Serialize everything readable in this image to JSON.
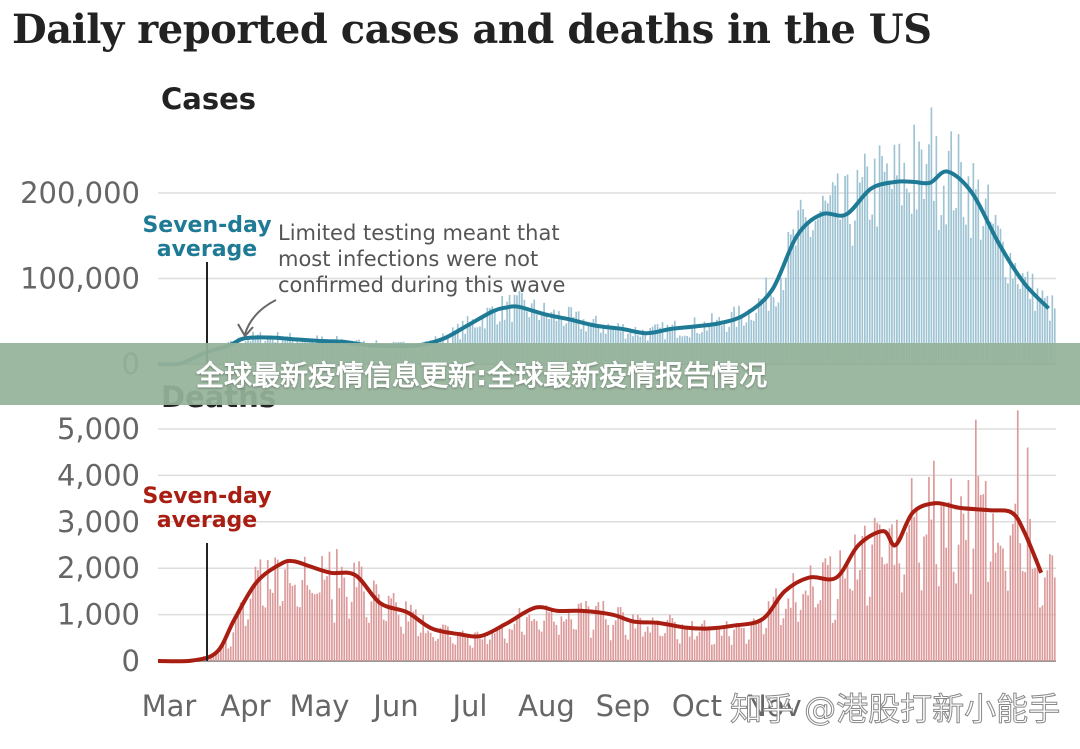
{
  "title": "Daily reported cases and deaths in the US",
  "banner": "全球最新疫情信息更新:全球最新疫情报告情况",
  "watermark": "知乎 @港股打新小能手",
  "colors": {
    "cases_line": "#1f7a96",
    "cases_bar": "#9ec3d3",
    "deaths_line": "#a81e12",
    "deaths_bar": "#dc9a9a",
    "banner": "#96b39a"
  },
  "chart_data": [
    {
      "type": "bar",
      "title": "Cases",
      "x_tick_labels": [
        "Mar",
        "Apr",
        "May",
        "Jun",
        "Jul",
        "Aug",
        "Sep",
        "Oct",
        "Nov"
      ],
      "y_tick_labels": [
        "200,000",
        "100,000",
        "0"
      ],
      "ylim": [
        0,
        200000
      ],
      "annotations": [
        {
          "label": "Seven-day average",
          "text": "Seven-day\naverage"
        },
        {
          "label": "note",
          "text": "Limited testing meant that\nmost infections were not\nconfirmed during this wave"
        }
      ],
      "series": [
        {
          "name": "Seven-day average",
          "kind": "line",
          "x": [
            "2020-03-01",
            "2020-03-10",
            "2020-03-20",
            "2020-03-30",
            "2020-04-05",
            "2020-04-15",
            "2020-04-25",
            "2020-05-05",
            "2020-05-15",
            "2020-05-25",
            "2020-06-05",
            "2020-06-15",
            "2020-06-25",
            "2020-07-05",
            "2020-07-15",
            "2020-07-20",
            "2020-07-25",
            "2020-08-05",
            "2020-08-15",
            "2020-08-25",
            "2020-09-05",
            "2020-09-15",
            "2020-09-25",
            "2020-10-05",
            "2020-10-15",
            "2020-10-25",
            "2020-11-05",
            "2020-11-15",
            "2020-11-25",
            "2020-12-05",
            "2020-12-15",
            "2020-12-25",
            "2021-01-01",
            "2021-01-08",
            "2021-01-15",
            "2021-01-25",
            "2021-02-05",
            "2021-02-15",
            "2021-02-25"
          ],
          "values": [
            0,
            500,
            13000,
            22000,
            30000,
            31000,
            29000,
            27000,
            26000,
            22000,
            21000,
            22000,
            30000,
            46000,
            62000,
            66000,
            67000,
            58000,
            52000,
            45000,
            41000,
            36000,
            41000,
            44000,
            48000,
            58000,
            87000,
            150000,
            175000,
            175000,
            205000,
            213000,
            213000,
            212000,
            225000,
            200000,
            140000,
            95000,
            65000
          ]
        },
        {
          "name": "Daily cases",
          "kind": "bar",
          "x_range": [
            "2020-03-01",
            "2021-02-28"
          ],
          "values_note": "bars fluctuate around the seven-day average; peak about 300,000 in early January"
        }
      ]
    },
    {
      "type": "bar",
      "title": "Deaths",
      "x_tick_labels": [
        "Mar",
        "Apr",
        "May",
        "Jun",
        "Jul",
        "Aug",
        "Sep",
        "Oct",
        "Nov"
      ],
      "y_tick_labels": [
        "5,000",
        "4,000",
        "3,000",
        "2,000",
        "1,000",
        "0"
      ],
      "ylim": [
        0,
        5000
      ],
      "annotations": [
        {
          "label": "Seven-day average",
          "text": "Seven-day\naverage"
        }
      ],
      "series": [
        {
          "name": "Seven-day average",
          "kind": "line",
          "x": [
            "2020-03-01",
            "2020-03-15",
            "2020-03-25",
            "2020-04-01",
            "2020-04-10",
            "2020-04-20",
            "2020-04-25",
            "2020-05-01",
            "2020-05-10",
            "2020-05-20",
            "2020-05-30",
            "2020-06-10",
            "2020-06-20",
            "2020-07-01",
            "2020-07-10",
            "2020-07-20",
            "2020-08-01",
            "2020-08-10",
            "2020-08-20",
            "2020-09-01",
            "2020-09-10",
            "2020-09-20",
            "2020-10-01",
            "2020-10-10",
            "2020-10-20",
            "2020-11-01",
            "2020-11-10",
            "2020-11-20",
            "2020-12-01",
            "2020-12-10",
            "2020-12-20",
            "2020-12-25",
            "2021-01-01",
            "2021-01-10",
            "2021-01-20",
            "2021-02-01",
            "2021-02-10",
            "2021-02-15",
            "2021-02-22"
          ],
          "values": [
            0,
            10,
            200,
            900,
            1700,
            2100,
            2150,
            2050,
            1900,
            1850,
            1250,
            1050,
            700,
            580,
            540,
            800,
            1150,
            1080,
            1080,
            1000,
            850,
            820,
            720,
            700,
            760,
            900,
            1500,
            1800,
            1800,
            2500,
            2800,
            2500,
            3200,
            3400,
            3300,
            3250,
            3200,
            2800,
            1900
          ]
        },
        {
          "name": "Daily deaths",
          "kind": "bar",
          "x_range": [
            "2020-03-01",
            "2021-02-28"
          ],
          "values_note": "bars fluctuate around the seven-day average; peak about 5,400 in mid-February"
        }
      ]
    }
  ]
}
